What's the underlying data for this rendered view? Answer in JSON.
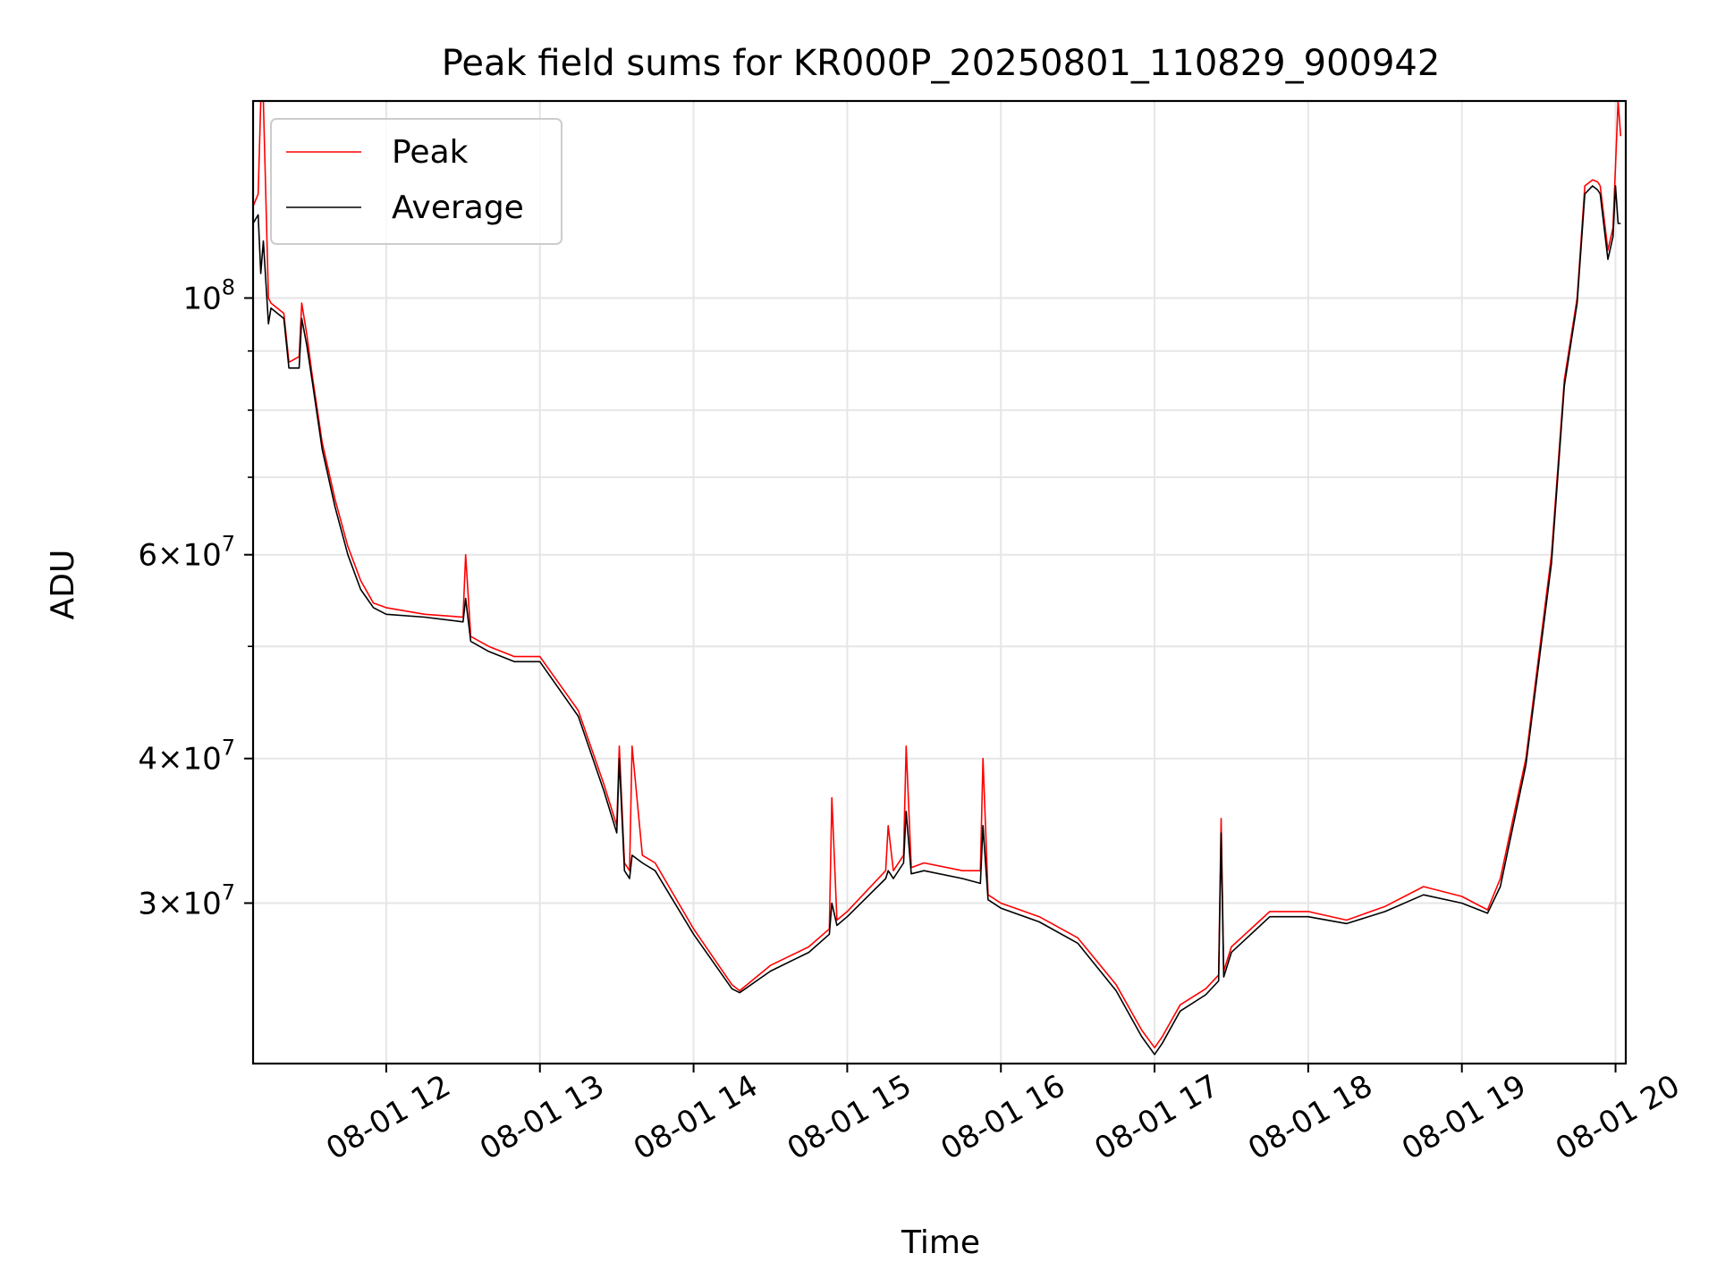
{
  "chart_data": {
    "type": "line",
    "title": "Peak field sums for KR000P_20250801_110829_900942",
    "xlabel": "Time",
    "ylabel": "ADU",
    "yscale": "log",
    "grid": true,
    "legend": {
      "placement": "top-left",
      "entries": [
        "Peak",
        "Average"
      ]
    },
    "xlim": [
      "2025-08-01 11:08",
      "2025-08-01 20:04"
    ],
    "ylim": [
      21800000,
      148000000
    ],
    "x_ticks": [
      "2025-08-01 12:00",
      "2025-08-01 13:00",
      "2025-08-01 14:00",
      "2025-08-01 15:00",
      "2025-08-01 16:00",
      "2025-08-01 17:00",
      "2025-08-01 18:00",
      "2025-08-01 19:00",
      "2025-08-01 20:00"
    ],
    "x_tick_labels": [
      "08-01 12",
      "08-01 13",
      "08-01 14",
      "08-01 15",
      "08-01 16",
      "08-01 17",
      "08-01 18",
      "08-01 19",
      "08-01 20"
    ],
    "y_ticks": [
      {
        "value": 100000000,
        "mant": "",
        "exp": "8"
      },
      {
        "value": 60000000,
        "mant": "6",
        "exp": "7"
      },
      {
        "value": 40000000,
        "mant": "4",
        "exp": "7"
      },
      {
        "value": 30000000,
        "mant": "3",
        "exp": "7"
      }
    ],
    "y_minor_ticks": [
      50000000,
      70000000,
      80000000,
      90000000
    ],
    "series": [
      {
        "name": "Peak",
        "color": "#ff0000",
        "x": [
          "2025-08-01 11:08",
          "2025-08-01 11:10",
          "2025-08-01 11:11",
          "2025-08-01 11:12",
          "2025-08-01 11:14",
          "2025-08-01 11:15",
          "2025-08-01 11:20",
          "2025-08-01 11:22",
          "2025-08-01 11:26",
          "2025-08-01 11:27",
          "2025-08-01 11:29",
          "2025-08-01 11:31",
          "2025-08-01 11:35",
          "2025-08-01 11:40",
          "2025-08-01 11:45",
          "2025-08-01 11:50",
          "2025-08-01 11:55",
          "2025-08-01 12:00",
          "2025-08-01 12:15",
          "2025-08-01 12:30",
          "2025-08-01 12:31",
          "2025-08-01 12:33",
          "2025-08-01 12:40",
          "2025-08-01 12:50",
          "2025-08-01 13:00",
          "2025-08-01 13:15",
          "2025-08-01 13:25",
          "2025-08-01 13:30",
          "2025-08-01 13:31",
          "2025-08-01 13:33",
          "2025-08-01 13:35",
          "2025-08-01 13:36",
          "2025-08-01 13:40",
          "2025-08-01 13:45",
          "2025-08-01 14:00",
          "2025-08-01 14:15",
          "2025-08-01 14:18",
          "2025-08-01 14:30",
          "2025-08-01 14:45",
          "2025-08-01 14:53",
          "2025-08-01 14:54",
          "2025-08-01 14:56",
          "2025-08-01 15:00",
          "2025-08-01 15:15",
          "2025-08-01 15:16",
          "2025-08-01 15:18",
          "2025-08-01 15:22",
          "2025-08-01 15:23",
          "2025-08-01 15:25",
          "2025-08-01 15:30",
          "2025-08-01 15:45",
          "2025-08-01 15:52",
          "2025-08-01 15:53",
          "2025-08-01 15:55",
          "2025-08-01 16:00",
          "2025-08-01 16:15",
          "2025-08-01 16:30",
          "2025-08-01 16:45",
          "2025-08-01 16:55",
          "2025-08-01 17:00",
          "2025-08-01 17:03",
          "2025-08-01 17:10",
          "2025-08-01 17:20",
          "2025-08-01 17:25",
          "2025-08-01 17:26",
          "2025-08-01 17:27",
          "2025-08-01 17:30",
          "2025-08-01 17:45",
          "2025-08-01 18:00",
          "2025-08-01 18:15",
          "2025-08-01 18:30",
          "2025-08-01 18:45",
          "2025-08-01 19:00",
          "2025-08-01 19:05",
          "2025-08-01 19:10",
          "2025-08-01 19:15",
          "2025-08-01 19:25",
          "2025-08-01 19:35",
          "2025-08-01 19:40",
          "2025-08-01 19:45",
          "2025-08-01 19:48",
          "2025-08-01 19:51",
          "2025-08-01 19:53",
          "2025-08-01 19:54",
          "2025-08-01 19:57",
          "2025-08-01 19:59",
          "2025-08-01 20:00",
          "2025-08-01 20:01",
          "2025-08-01 20:02"
        ],
        "y": [
          120000000,
          123000000,
          148000000,
          148000000,
          100000000,
          99000000,
          97000000,
          88000000,
          89000000,
          99000000,
          93000000,
          86000000,
          75000000,
          67000000,
          61000000,
          57000000,
          54500000,
          54000000,
          53300000,
          53000000,
          60000000,
          51000000,
          50000000,
          49000000,
          49000000,
          44000000,
          38000000,
          35000000,
          41000000,
          32500000,
          32000000,
          41000000,
          33000000,
          32500000,
          28500000,
          25500000,
          25200000,
          26500000,
          27500000,
          28500000,
          37000000,
          29000000,
          29500000,
          32000000,
          35000000,
          32000000,
          33000000,
          41000000,
          32200000,
          32500000,
          32000000,
          32000000,
          40000000,
          30500000,
          30000000,
          29200000,
          28000000,
          25500000,
          23300000,
          22500000,
          23000000,
          24500000,
          25300000,
          26000000,
          35500000,
          26200000,
          27500000,
          29500000,
          29500000,
          29000000,
          29800000,
          31000000,
          30400000,
          30000000,
          29600000,
          31500000,
          40000000,
          60000000,
          85000000,
          100000000,
          125000000,
          126500000,
          126000000,
          125000000,
          110000000,
          115000000,
          130000000,
          148000000,
          138000000
        ]
      },
      {
        "name": "Average",
        "color": "#000000",
        "x": [
          "2025-08-01 11:08",
          "2025-08-01 11:10",
          "2025-08-01 11:11",
          "2025-08-01 11:12",
          "2025-08-01 11:14",
          "2025-08-01 11:15",
          "2025-08-01 11:20",
          "2025-08-01 11:22",
          "2025-08-01 11:26",
          "2025-08-01 11:27",
          "2025-08-01 11:29",
          "2025-08-01 11:31",
          "2025-08-01 11:35",
          "2025-08-01 11:40",
          "2025-08-01 11:45",
          "2025-08-01 11:50",
          "2025-08-01 11:55",
          "2025-08-01 12:00",
          "2025-08-01 12:15",
          "2025-08-01 12:30",
          "2025-08-01 12:31",
          "2025-08-01 12:33",
          "2025-08-01 12:40",
          "2025-08-01 12:50",
          "2025-08-01 13:00",
          "2025-08-01 13:15",
          "2025-08-01 13:25",
          "2025-08-01 13:30",
          "2025-08-01 13:31",
          "2025-08-01 13:33",
          "2025-08-01 13:35",
          "2025-08-01 13:36",
          "2025-08-01 13:40",
          "2025-08-01 13:45",
          "2025-08-01 14:00",
          "2025-08-01 14:15",
          "2025-08-01 14:18",
          "2025-08-01 14:30",
          "2025-08-01 14:45",
          "2025-08-01 14:53",
          "2025-08-01 14:54",
          "2025-08-01 14:56",
          "2025-08-01 15:00",
          "2025-08-01 15:15",
          "2025-08-01 15:16",
          "2025-08-01 15:18",
          "2025-08-01 15:22",
          "2025-08-01 15:23",
          "2025-08-01 15:25",
          "2025-08-01 15:30",
          "2025-08-01 15:45",
          "2025-08-01 15:52",
          "2025-08-01 15:53",
          "2025-08-01 15:55",
          "2025-08-01 16:00",
          "2025-08-01 16:15",
          "2025-08-01 16:30",
          "2025-08-01 16:45",
          "2025-08-01 16:55",
          "2025-08-01 17:00",
          "2025-08-01 17:03",
          "2025-08-01 17:10",
          "2025-08-01 17:20",
          "2025-08-01 17:25",
          "2025-08-01 17:26",
          "2025-08-01 17:27",
          "2025-08-01 17:30",
          "2025-08-01 17:45",
          "2025-08-01 18:00",
          "2025-08-01 18:15",
          "2025-08-01 18:30",
          "2025-08-01 18:45",
          "2025-08-01 19:00",
          "2025-08-01 19:05",
          "2025-08-01 19:10",
          "2025-08-01 19:15",
          "2025-08-01 19:25",
          "2025-08-01 19:35",
          "2025-08-01 19:40",
          "2025-08-01 19:45",
          "2025-08-01 19:48",
          "2025-08-01 19:51",
          "2025-08-01 19:53",
          "2025-08-01 19:54",
          "2025-08-01 19:57",
          "2025-08-01 19:59",
          "2025-08-01 20:00",
          "2025-08-01 20:01",
          "2025-08-01 20:02"
        ],
        "y": [
          116000000,
          118000000,
          105000000,
          112000000,
          95000000,
          98000000,
          96000000,
          87000000,
          87000000,
          96000000,
          91000000,
          85000000,
          74000000,
          66000000,
          60000000,
          56000000,
          54000000,
          53300000,
          53000000,
          52500000,
          55000000,
          50500000,
          49500000,
          48500000,
          48500000,
          43500000,
          37500000,
          34500000,
          40000000,
          32000000,
          31500000,
          33000000,
          32500000,
          32000000,
          28200000,
          25300000,
          25100000,
          26200000,
          27200000,
          28200000,
          30000000,
          28700000,
          29200000,
          31500000,
          32000000,
          31500000,
          32500000,
          36000000,
          31800000,
          32000000,
          31500000,
          31200000,
          35000000,
          30200000,
          29700000,
          28900000,
          27700000,
          25200000,
          23000000,
          22200000,
          22700000,
          24200000,
          25000000,
          25700000,
          34500000,
          25900000,
          27200000,
          29200000,
          29200000,
          28800000,
          29500000,
          30500000,
          30000000,
          29700000,
          29400000,
          31000000,
          39500000,
          59000000,
          84000000,
          99000000,
          123000000,
          125000000,
          124000000,
          123000000,
          108000000,
          113000000,
          125000000,
          116000000,
          116000000
        ]
      }
    ]
  }
}
